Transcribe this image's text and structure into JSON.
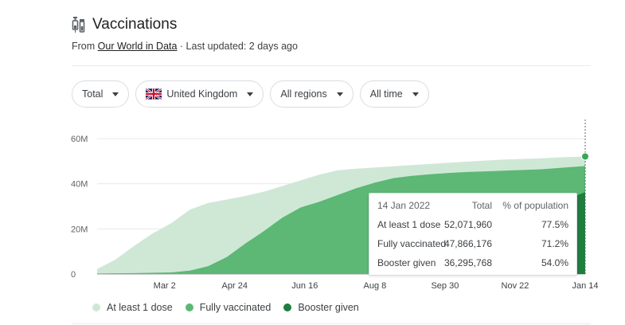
{
  "header": {
    "title": "Vaccinations",
    "icon": "syringe-vial-icon",
    "source_prefix": "From ",
    "source_link": "Our World in Data",
    "source_suffix": " · Last updated: 2 days ago"
  },
  "filters": [
    {
      "label": "Total"
    },
    {
      "label": "United Kingdom",
      "icon": "uk-flag-icon"
    },
    {
      "label": "All regions"
    },
    {
      "label": "All time"
    }
  ],
  "tooltip": {
    "date": "14 Jan 2022",
    "col_total": "Total",
    "col_pct": "% of population",
    "rows": [
      {
        "label": "At least 1 dose",
        "total": "52,071,960",
        "pct": "77.5%"
      },
      {
        "label": "Fully vaccinated",
        "total": "47,866,176",
        "pct": "71.2%"
      },
      {
        "label": "Booster given",
        "total": "36,295,768",
        "pct": "54.0%"
      }
    ]
  },
  "colors": {
    "at_least_one": "#cfe8d6",
    "fully": "#5cb874",
    "booster": "#1e7e3e",
    "grid": "#e8eaed"
  },
  "chart_data": {
    "type": "area",
    "title": "",
    "xlabel": "",
    "ylabel": "",
    "x_range": [
      "2021-01-10",
      "2022-01-14"
    ],
    "ylim": [
      0,
      60000000
    ],
    "y_ticks": [
      {
        "value": 0,
        "label": "0"
      },
      {
        "value": 20000000,
        "label": "20M"
      },
      {
        "value": 40000000,
        "label": "40M"
      },
      {
        "value": 60000000,
        "label": "60M"
      }
    ],
    "x_ticks": [
      {
        "date": "2021-03-02",
        "label": "Mar 2"
      },
      {
        "date": "2021-04-24",
        "label": "Apr 24"
      },
      {
        "date": "2021-06-16",
        "label": "Jun 16"
      },
      {
        "date": "2021-08-08",
        "label": "Aug 8"
      },
      {
        "date": "2021-09-30",
        "label": "Sep 30"
      },
      {
        "date": "2021-11-22",
        "label": "Nov 22"
      },
      {
        "date": "2022-01-14",
        "label": "Jan 14"
      }
    ],
    "grid": true,
    "legend_position": "bottom-left",
    "highlight_date": "2022-01-14",
    "series": [
      {
        "name": "At least 1 dose",
        "color": "#cfe8d6",
        "points": [
          [
            "2021-01-10",
            2200000
          ],
          [
            "2021-01-24",
            6500000
          ],
          [
            "2021-02-07",
            12500000
          ],
          [
            "2021-02-21",
            18000000
          ],
          [
            "2021-03-07",
            22500000
          ],
          [
            "2021-03-21",
            28500000
          ],
          [
            "2021-04-04",
            31500000
          ],
          [
            "2021-04-18",
            33000000
          ],
          [
            "2021-05-02",
            34600000
          ],
          [
            "2021-05-16",
            36500000
          ],
          [
            "2021-05-30",
            39000000
          ],
          [
            "2021-06-13",
            41500000
          ],
          [
            "2021-06-27",
            44000000
          ],
          [
            "2021-07-11",
            46000000
          ],
          [
            "2021-07-25",
            46700000
          ],
          [
            "2021-08-08",
            47200000
          ],
          [
            "2021-08-22",
            47700000
          ],
          [
            "2021-09-05",
            48300000
          ],
          [
            "2021-09-19",
            48800000
          ],
          [
            "2021-10-03",
            49300000
          ],
          [
            "2021-10-17",
            49800000
          ],
          [
            "2021-10-31",
            50300000
          ],
          [
            "2021-11-14",
            50700000
          ],
          [
            "2021-11-28",
            51000000
          ],
          [
            "2021-12-12",
            51300000
          ],
          [
            "2021-12-26",
            51700000
          ],
          [
            "2022-01-14",
            52071960
          ]
        ]
      },
      {
        "name": "Fully vaccinated",
        "color": "#5cb874",
        "points": [
          [
            "2021-01-10",
            200000
          ],
          [
            "2021-02-07",
            400000
          ],
          [
            "2021-03-07",
            700000
          ],
          [
            "2021-03-21",
            1500000
          ],
          [
            "2021-04-04",
            3500000
          ],
          [
            "2021-04-18",
            7500000
          ],
          [
            "2021-05-02",
            13500000
          ],
          [
            "2021-05-16",
            19000000
          ],
          [
            "2021-05-30",
            25000000
          ],
          [
            "2021-06-13",
            29500000
          ],
          [
            "2021-06-27",
            32000000
          ],
          [
            "2021-07-11",
            35000000
          ],
          [
            "2021-07-25",
            38000000
          ],
          [
            "2021-08-08",
            40500000
          ],
          [
            "2021-08-22",
            42500000
          ],
          [
            "2021-09-05",
            43500000
          ],
          [
            "2021-09-19",
            44200000
          ],
          [
            "2021-10-03",
            44800000
          ],
          [
            "2021-10-17",
            45200000
          ],
          [
            "2021-10-31",
            45500000
          ],
          [
            "2021-11-14",
            45800000
          ],
          [
            "2021-11-28",
            46100000
          ],
          [
            "2021-12-12",
            46400000
          ],
          [
            "2021-12-26",
            47000000
          ],
          [
            "2022-01-14",
            47866176
          ]
        ]
      },
      {
        "name": "Booster given",
        "color": "#1e7e3e",
        "points": [
          [
            "2021-09-14",
            0
          ],
          [
            "2021-10-03",
            1500000
          ],
          [
            "2021-10-17",
            4000000
          ],
          [
            "2021-10-31",
            8000000
          ],
          [
            "2021-11-14",
            13000000
          ],
          [
            "2021-11-28",
            17500000
          ],
          [
            "2021-12-12",
            24000000
          ],
          [
            "2021-12-26",
            32000000
          ],
          [
            "2022-01-14",
            36295768
          ]
        ]
      }
    ]
  }
}
